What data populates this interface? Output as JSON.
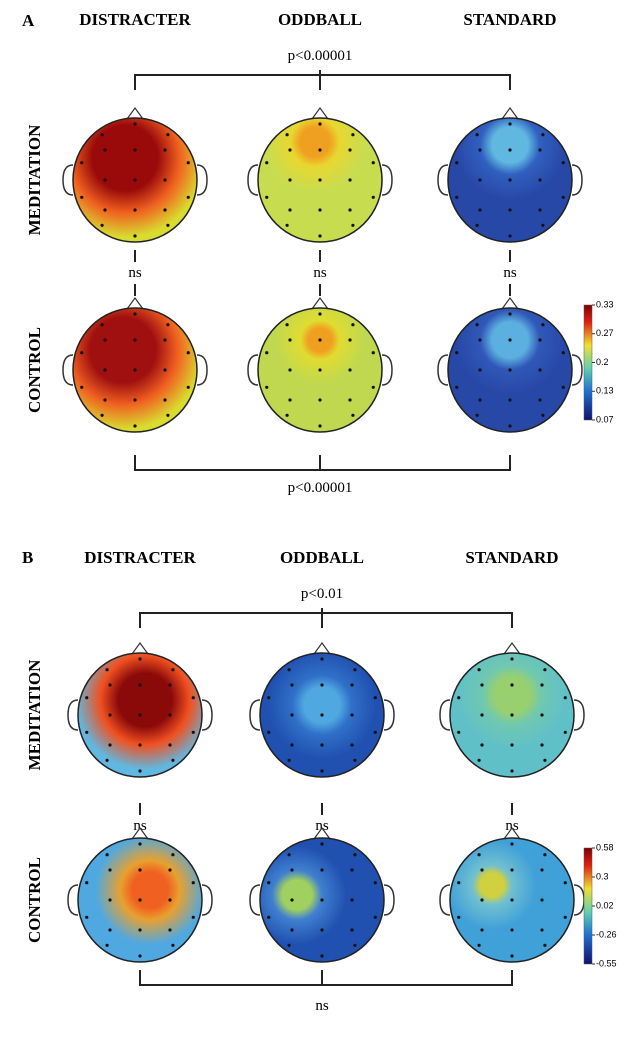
{
  "panels": [
    {
      "label": "A",
      "columns": [
        "DISTRACTER",
        "ODDBALL",
        "STANDARD"
      ],
      "rows": [
        "MEDITATION",
        "CONTROL"
      ],
      "top_comparison": "p<0.00001",
      "between_rows": [
        "ns",
        "ns",
        "ns"
      ],
      "bottom_comparison": "p<0.00001",
      "colorbar": [
        "0.33",
        "0.27",
        "0.2",
        "0.13",
        "0.07"
      ]
    },
    {
      "label": "B",
      "columns": [
        "DISTRACTER",
        "ODDBALL",
        "STANDARD"
      ],
      "rows": [
        "MEDITATION",
        "CONTROL"
      ],
      "top_comparison": "p<0.01",
      "between_rows": [
        "ns",
        "ns",
        "ns"
      ],
      "bottom_comparison": "ns",
      "colorbar": [
        "0.58",
        "0.3",
        "0.02",
        "-0.26",
        "-0.55"
      ]
    }
  ]
}
